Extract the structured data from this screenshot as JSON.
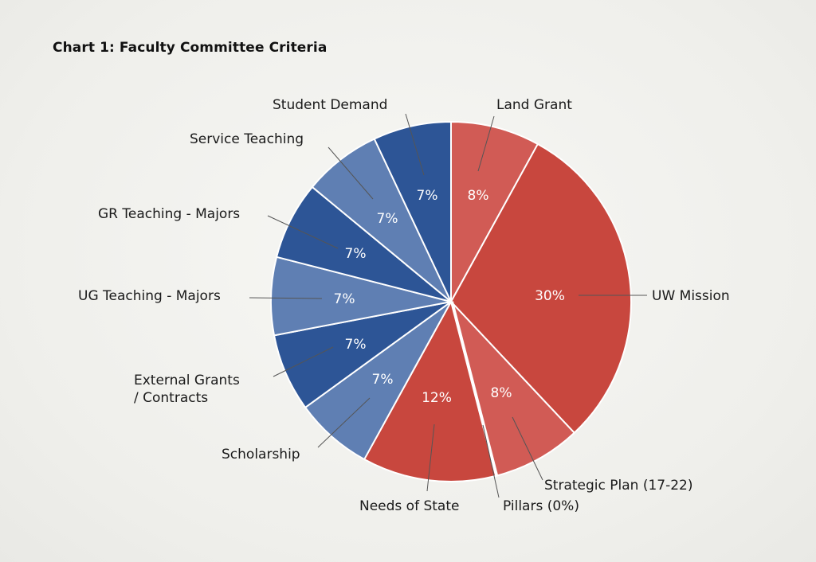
{
  "chart_data": {
    "type": "pie",
    "title": "Chart 1: Faculty Committee Criteria",
    "slices": [
      {
        "label": "Land Grant",
        "value": 8,
        "value_label": "8%",
        "color": "#d15b55"
      },
      {
        "label": "UW Mission",
        "value": 30,
        "value_label": "30%",
        "color": "#c8473e"
      },
      {
        "label": "Strategic Plan (17-22)",
        "value": 8,
        "value_label": "8%",
        "color": "#d15b55"
      },
      {
        "label": "Pillars (0%)",
        "value": 0,
        "value_label": "",
        "color": "#c8473e"
      },
      {
        "label": "Needs of State",
        "value": 12,
        "value_label": "12%",
        "color": "#c8473e"
      },
      {
        "label": "Scholarship",
        "value": 7,
        "value_label": "7%",
        "color": "#5f7fb3"
      },
      {
        "label": "External Grants\n/ Contracts",
        "value": 7,
        "value_label": "7%",
        "color": "#2d5596"
      },
      {
        "label": "UG Teaching - Majors",
        "value": 7,
        "value_label": "7%",
        "color": "#5f7fb3"
      },
      {
        "label": "GR Teaching - Majors",
        "value": 7,
        "value_label": "7%",
        "color": "#2d5596"
      },
      {
        "label": "Service Teaching",
        "value": 7,
        "value_label": "7%",
        "color": "#5f7fb3"
      },
      {
        "label": "Student Demand",
        "value": 7,
        "value_label": "7%",
        "color": "#2d5596"
      }
    ]
  }
}
